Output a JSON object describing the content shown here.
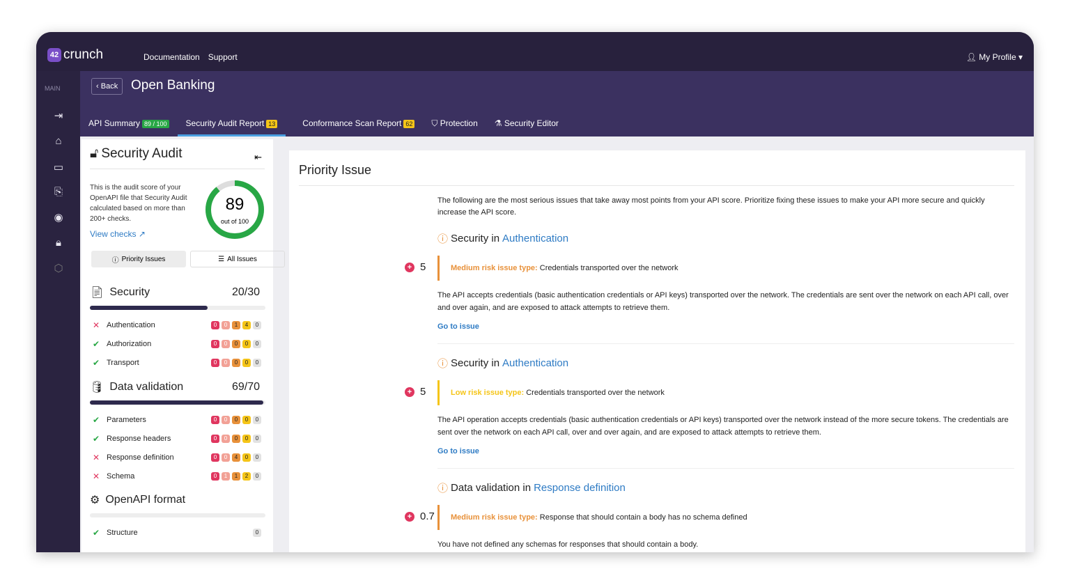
{
  "app": {
    "logo": "crunch",
    "logo_mark": "42",
    "nav": [
      "Documentation",
      "Support"
    ],
    "profile": "My Profile"
  },
  "rail": {
    "section": "MAIN",
    "icons": [
      "collapse-icon",
      "home-icon",
      "folder-icon",
      "import-icon",
      "eye-icon",
      "lock-icon",
      "settings-icon"
    ]
  },
  "header": {
    "back": "Back",
    "title": "Open Banking",
    "tabs": [
      {
        "label": "API Summary",
        "badge": "89 / 100"
      },
      {
        "label": "Security Audit Report",
        "badge": "13"
      },
      {
        "label": "Conformance Scan Report",
        "badge": "62"
      },
      {
        "label": "Protection"
      },
      {
        "label": "Security Editor"
      }
    ]
  },
  "audit": {
    "title": "Security Audit",
    "description": "This is the audit score of your OpenAPI file that Security Audit calculated based on more than 200+ checks.",
    "view_checks": "View checks",
    "score": "89",
    "score_sub": "out of 100",
    "score_value": 89,
    "btn_priority": "Priority Issues",
    "btn_all": "All Issues",
    "colors": {
      "critical": "#e0365f",
      "high": "#f2a196",
      "medium": "#e8913a",
      "low": "#f5c518",
      "info": "#e2e2e2",
      "score": "#28a745"
    },
    "categories": [
      {
        "name": "Security",
        "points": "20/30",
        "fill": 0.67,
        "items": [
          {
            "name": "Authentication",
            "ok": false,
            "counts": [
              "0",
              "0",
              "1",
              "4",
              "0"
            ]
          },
          {
            "name": "Authorization",
            "ok": true,
            "counts": [
              "0",
              "0",
              "0",
              "0",
              "0"
            ]
          },
          {
            "name": "Transport",
            "ok": true,
            "counts": [
              "0",
              "0",
              "0",
              "0",
              "0"
            ]
          }
        ]
      },
      {
        "name": "Data validation",
        "points": "69/70",
        "fill": 0.99,
        "items": [
          {
            "name": "Parameters",
            "ok": true,
            "counts": [
              "0",
              "0",
              "0",
              "0",
              "0"
            ]
          },
          {
            "name": "Response headers",
            "ok": true,
            "counts": [
              "0",
              "0",
              "0",
              "0",
              "0"
            ]
          },
          {
            "name": "Response definition",
            "ok": false,
            "counts": [
              "0",
              "0",
              "4",
              "0",
              "0"
            ]
          },
          {
            "name": "Schema",
            "ok": false,
            "counts": [
              "0",
              "1",
              "1",
              "2",
              "0"
            ]
          }
        ]
      },
      {
        "name": "OpenAPI format",
        "points": "",
        "fill": 0,
        "items": [
          {
            "name": "Structure",
            "ok": true,
            "counts": [
              "0"
            ]
          }
        ]
      }
    ]
  },
  "priority": {
    "title": "Priority Issue",
    "intro": "The following are the most serious issues that take away most points from your API score. Prioritize fixing these issues to make your API more secure and quickly increase the API score.",
    "issues": [
      {
        "group": "Security in",
        "link": "Authentication",
        "score": "5",
        "risk": "Medium risk issue type:",
        "risk_level": "medium",
        "type": "Credentials transported over the network",
        "desc": "The API accepts credentials (basic authentication credentials or API keys) transported over the network. The credentials are sent over the network on each API call, over and over again, and are exposed to attack attempts to retrieve them.",
        "go": "Go to issue"
      },
      {
        "group": "Security in",
        "link": "Authentication",
        "score": "5",
        "risk": "Low risk issue type:",
        "risk_level": "low",
        "type": "Credentials transported over the network",
        "desc": "The API operation accepts credentials (basic authentication credentials or API keys) transported over the network instead of the more secure tokens. The credentials are sent over the network on each API call, over and over again, and are exposed to attack attempts to retrieve them.",
        "go": "Go to issue"
      },
      {
        "group": "Data validation in",
        "link": "Response definition",
        "score": "0.7",
        "risk": "Medium risk issue type:",
        "risk_level": "medium",
        "type": "Response that should contain a body has no schema defined",
        "desc": "You have not defined any schemas for responses that should contain a body.",
        "go": ""
      }
    ]
  }
}
